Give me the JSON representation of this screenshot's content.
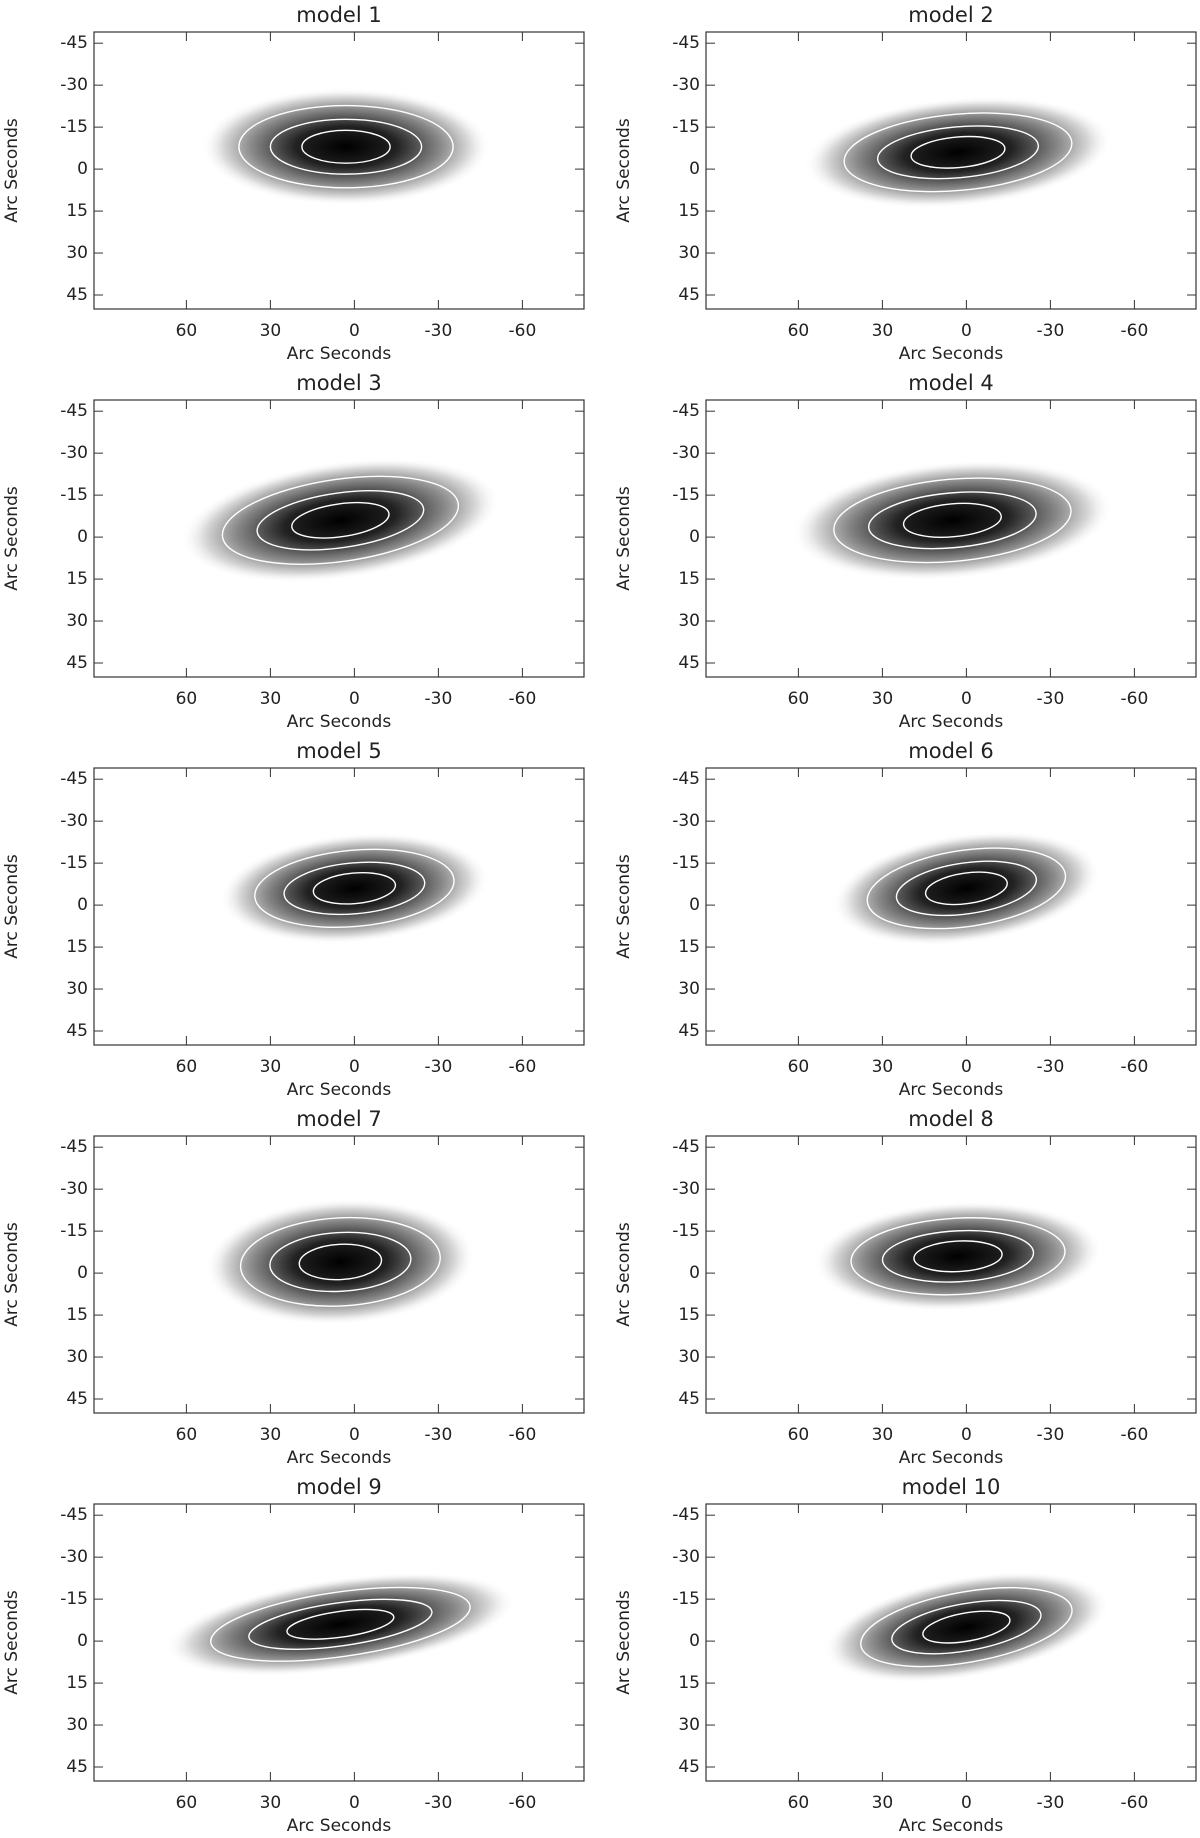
{
  "chart_data": [
    {
      "type": "image",
      "title": "model 1",
      "xlabel": "Arc Seconds",
      "ylabel": "Arc Seconds",
      "xlim": [
        93,
        -82
      ],
      "ylim": [
        50,
        -49
      ],
      "xticks": [
        60,
        30,
        0,
        -30,
        -60
      ],
      "yticks": [
        -45,
        -30,
        -15,
        0,
        15,
        30,
        45
      ]
    },
    {
      "type": "image",
      "title": "model 2",
      "xlabel": "Arc Seconds",
      "ylabel": "Arc Seconds",
      "xlim": [
        93,
        -82
      ],
      "ylim": [
        50,
        -49
      ],
      "xticks": [
        60,
        30,
        0,
        -30,
        -60
      ],
      "yticks": [
        -45,
        -30,
        -15,
        0,
        15,
        30,
        45
      ]
    },
    {
      "type": "image",
      "title": "model 3",
      "xlabel": "Arc Seconds",
      "ylabel": "Arc Seconds",
      "xlim": [
        93,
        -82
      ],
      "ylim": [
        50,
        -49
      ],
      "xticks": [
        60,
        30,
        0,
        -30,
        -60
      ],
      "yticks": [
        -45,
        -30,
        -15,
        0,
        15,
        30,
        45
      ]
    },
    {
      "type": "image",
      "title": "model 4",
      "xlabel": "Arc Seconds",
      "ylabel": "Arc Seconds",
      "xlim": [
        93,
        -82
      ],
      "ylim": [
        50,
        -49
      ],
      "xticks": [
        60,
        30,
        0,
        -30,
        -60
      ],
      "yticks": [
        -45,
        -30,
        -15,
        0,
        15,
        30,
        45
      ]
    },
    {
      "type": "image",
      "title": "model 5",
      "xlabel": "Arc Seconds",
      "ylabel": "Arc Seconds",
      "xlim": [
        93,
        -82
      ],
      "ylim": [
        50,
        -49
      ],
      "xticks": [
        60,
        30,
        0,
        -30,
        -60
      ],
      "yticks": [
        -45,
        -30,
        -15,
        0,
        15,
        30,
        45
      ]
    },
    {
      "type": "image",
      "title": "model 6",
      "xlabel": "Arc Seconds",
      "ylabel": "Arc Seconds",
      "xlim": [
        93,
        -82
      ],
      "ylim": [
        50,
        -49
      ],
      "xticks": [
        60,
        30,
        0,
        -30,
        -60
      ],
      "yticks": [
        -45,
        -30,
        -15,
        0,
        15,
        30,
        45
      ]
    },
    {
      "type": "image",
      "title": "model 7",
      "xlabel": "Arc Seconds",
      "ylabel": "Arc Seconds",
      "xlim": [
        93,
        -82
      ],
      "ylim": [
        50,
        -49
      ],
      "xticks": [
        60,
        30,
        0,
        -30,
        -60
      ],
      "yticks": [
        -45,
        -30,
        -15,
        0,
        15,
        30,
        45
      ]
    },
    {
      "type": "image",
      "title": "model 8",
      "xlabel": "Arc Seconds",
      "ylabel": "Arc Seconds",
      "xlim": [
        93,
        -82
      ],
      "ylim": [
        50,
        -49
      ],
      "xticks": [
        60,
        30,
        0,
        -30,
        -60
      ],
      "yticks": [
        -45,
        -30,
        -15,
        0,
        15,
        30,
        45
      ]
    },
    {
      "type": "image",
      "title": "model 9",
      "xlabel": "Arc Seconds",
      "ylabel": "Arc Seconds",
      "xlim": [
        93,
        -82
      ],
      "ylim": [
        50,
        -49
      ],
      "xticks": [
        60,
        30,
        0,
        -30,
        -60
      ],
      "yticks": [
        -45,
        -30,
        -15,
        0,
        15,
        30,
        45
      ]
    },
    {
      "type": "image",
      "title": "model 10",
      "xlabel": "Arc Seconds",
      "ylabel": "Arc Seconds",
      "xlim": [
        93,
        -82
      ],
      "ylim": [
        50,
        -49
      ],
      "xticks": [
        60,
        30,
        0,
        -30,
        -60
      ],
      "yticks": [
        -45,
        -30,
        -15,
        0,
        15,
        30,
        45
      ]
    }
  ]
}
